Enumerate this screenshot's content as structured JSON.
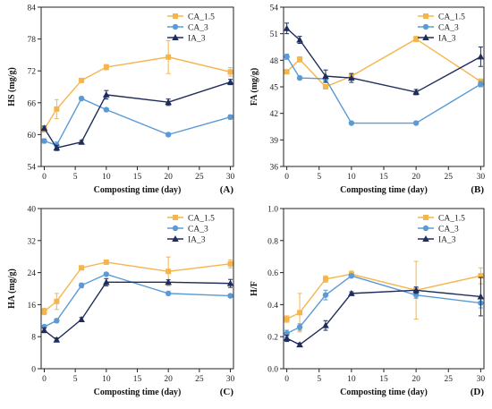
{
  "colors": {
    "CA_1.5": "#F5B54B",
    "CA_3": "#5B9BD5",
    "IA_3": "#1F2D5C"
  },
  "markers": {
    "CA_1.5": "square",
    "CA_3": "circle",
    "IA_3": "triangle"
  },
  "chart_data": [
    {
      "type": "line",
      "panel": "(A)",
      "xlabel": "Composting time (day)",
      "ylabel": "HS (mg/g)",
      "x": [
        0,
        2,
        6,
        10,
        20,
        30
      ],
      "xlim": [
        -0.5,
        30.5
      ],
      "ylim": [
        54,
        84
      ],
      "xticks": [
        0,
        5,
        10,
        15,
        20,
        25,
        30
      ],
      "yticks": [
        54,
        60,
        66,
        72,
        78,
        84
      ],
      "legend": "top-right",
      "series": [
        {
          "name": "CA_1.5",
          "values": [
            61.0,
            64.8,
            70.2,
            72.7,
            74.6,
            71.8
          ],
          "errors": [
            0.5,
            1.8,
            0.3,
            0.5,
            3.1,
            0.8
          ]
        },
        {
          "name": "CA_3",
          "values": [
            58.8,
            58.0,
            66.8,
            64.7,
            60.0,
            63.3
          ],
          "errors": [
            0.4,
            0.6,
            0.3,
            0.3,
            0.3,
            0.4
          ]
        },
        {
          "name": "IA_3",
          "values": [
            61.2,
            57.5,
            58.6,
            67.5,
            66.1,
            69.9
          ],
          "errors": [
            0.4,
            0.5,
            0.3,
            0.8,
            0.6,
            0.5
          ]
        }
      ]
    },
    {
      "type": "line",
      "panel": "(B)",
      "xlabel": "Composting time (day)",
      "ylabel": "FA (mg/g)",
      "x": [
        0,
        2,
        6,
        10,
        20,
        30
      ],
      "xlim": [
        -0.5,
        30.5
      ],
      "ylim": [
        36,
        54
      ],
      "xticks": [
        0,
        5,
        10,
        15,
        20,
        25,
        30
      ],
      "yticks": [
        36,
        39,
        42,
        45,
        48,
        51,
        54
      ],
      "legend": "top-right",
      "series": [
        {
          "name": "CA_1.5",
          "values": [
            46.7,
            48.1,
            45.0,
            46.2,
            50.4,
            45.6
          ],
          "errors": [
            0.2,
            0.3,
            0.2,
            0.3,
            0.3,
            0.3
          ]
        },
        {
          "name": "CA_3",
          "values": [
            48.4,
            46.0,
            45.9,
            40.9,
            40.9,
            45.3
          ],
          "errors": [
            0.3,
            0.2,
            0.3,
            0.1,
            0.1,
            0.3
          ]
        },
        {
          "name": "IA_3",
          "values": [
            51.6,
            50.3,
            46.2,
            46.0,
            44.4,
            48.4
          ],
          "errors": [
            0.6,
            0.4,
            0.7,
            0.5,
            0.3,
            1.1
          ]
        }
      ]
    },
    {
      "type": "line",
      "panel": "(C)",
      "xlabel": "Composting time (day)",
      "ylabel": "HA (mg/g)",
      "x": [
        0,
        2,
        6,
        10,
        20,
        30
      ],
      "xlim": [
        -0.5,
        30.5
      ],
      "ylim": [
        0,
        40
      ],
      "xticks": [
        0,
        5,
        10,
        15,
        20,
        25,
        30
      ],
      "yticks": [
        0,
        8,
        16,
        24,
        32,
        40
      ],
      "legend": "top-right",
      "series": [
        {
          "name": "CA_1.5",
          "values": [
            14.3,
            16.8,
            25.2,
            26.6,
            24.3,
            26.2
          ],
          "errors": [
            0.8,
            2.0,
            0.3,
            0.4,
            3.6,
            1.0
          ]
        },
        {
          "name": "CA_3",
          "values": [
            10.5,
            12.0,
            20.8,
            23.6,
            18.8,
            18.2
          ],
          "errors": [
            0.4,
            0.5,
            0.6,
            0.3,
            0.4,
            0.4
          ]
        },
        {
          "name": "IA_3",
          "values": [
            9.6,
            7.2,
            12.3,
            21.6,
            21.6,
            21.3
          ],
          "errors": [
            0.6,
            0.5,
            0.5,
            0.9,
            0.6,
            1.0
          ]
        }
      ]
    },
    {
      "type": "line",
      "panel": "(D)",
      "xlabel": "Composting time (day)",
      "ylabel": "H/F",
      "x": [
        0,
        2,
        6,
        10,
        20,
        30
      ],
      "xlim": [
        -0.5,
        30.5
      ],
      "ylim": [
        0.0,
        1.0
      ],
      "xticks": [
        0,
        5,
        10,
        15,
        20,
        25,
        30
      ],
      "yticks": [
        0.0,
        0.2,
        0.4,
        0.6,
        0.8,
        1.0
      ],
      "legend": "top-right",
      "series": [
        {
          "name": "CA_1.5",
          "values": [
            0.31,
            0.35,
            0.56,
            0.59,
            0.49,
            0.58
          ],
          "errors": [
            0.02,
            0.12,
            0.02,
            0.02,
            0.18,
            0.05
          ]
        },
        {
          "name": "CA_3",
          "values": [
            0.22,
            0.26,
            0.46,
            0.58,
            0.46,
            0.41
          ],
          "errors": [
            0.02,
            0.02,
            0.03,
            0.01,
            0.02,
            0.03
          ]
        },
        {
          "name": "IA_3",
          "values": [
            0.19,
            0.15,
            0.27,
            0.47,
            0.49,
            0.45
          ],
          "errors": [
            0.02,
            0.01,
            0.03,
            0.01,
            0.02,
            0.12
          ]
        }
      ]
    }
  ]
}
